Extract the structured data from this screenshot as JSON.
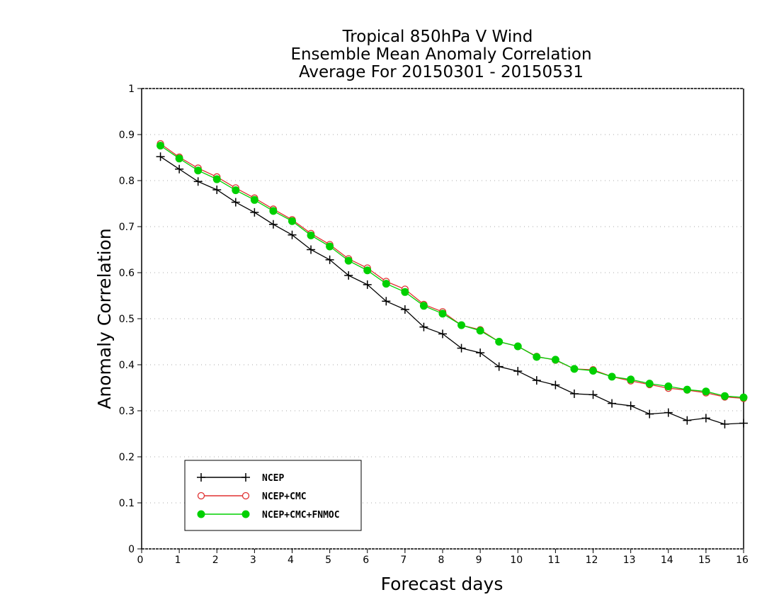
{
  "chart_data": {
    "type": "line",
    "title": "Tropical 850hPa V Wind",
    "subtitle_line1": "Ensemble Mean Anomaly Correlation",
    "subtitle_line2": "Average For 20150301 - 20150531",
    "xlabel": "Forecast days",
    "ylabel": "Anomaly Correlation",
    "xlim": [
      0,
      16
    ],
    "ylim": [
      0,
      1
    ],
    "xticks": [
      "0",
      "1",
      "2",
      "3",
      "4",
      "5",
      "6",
      "7",
      "8",
      "9",
      "10",
      "11",
      "12",
      "13",
      "14",
      "15",
      "16"
    ],
    "yticks": [
      "0",
      "0.1",
      "0.2",
      "0.3",
      "0.4",
      "0.5",
      "0.6",
      "0.7",
      "0.8",
      "0.9",
      "1"
    ],
    "grid": true,
    "legend_position": "bottom-left",
    "x": [
      0.5,
      1,
      1.5,
      2,
      2.5,
      3,
      3.5,
      4,
      4.5,
      5,
      5.5,
      6,
      6.5,
      7,
      7.5,
      8,
      8.5,
      9,
      9.5,
      10,
      10.5,
      11,
      11.5,
      12,
      12.5,
      13,
      13.5,
      14,
      14.5,
      15,
      15.5,
      16
    ],
    "series": [
      {
        "name": "NCEP",
        "color": "#000000",
        "marker": "plus",
        "values": [
          0.852,
          0.825,
          0.798,
          0.78,
          0.753,
          0.731,
          0.705,
          0.682,
          0.65,
          0.628,
          0.594,
          0.574,
          0.538,
          0.52,
          0.482,
          0.467,
          0.436,
          0.426,
          0.396,
          0.386,
          0.366,
          0.356,
          0.337,
          0.335,
          0.316,
          0.311,
          0.293,
          0.296,
          0.279,
          0.284,
          0.271,
          0.273
        ]
      },
      {
        "name": "NCEP+CMC",
        "color": "#e03030",
        "marker": "open-circle",
        "values": [
          0.88,
          0.851,
          0.827,
          0.808,
          0.784,
          0.762,
          0.738,
          0.715,
          0.685,
          0.661,
          0.63,
          0.61,
          0.581,
          0.564,
          0.531,
          0.515,
          0.486,
          0.476,
          0.45,
          0.44,
          0.418,
          0.41,
          0.391,
          0.389,
          0.374,
          0.365,
          0.357,
          0.349,
          0.345,
          0.339,
          0.33,
          0.327
        ]
      },
      {
        "name": "NCEP+CMC+FNMOC",
        "color": "#00d000",
        "marker": "filled-circle",
        "values": [
          0.876,
          0.848,
          0.822,
          0.803,
          0.779,
          0.758,
          0.734,
          0.712,
          0.681,
          0.657,
          0.626,
          0.605,
          0.576,
          0.558,
          0.528,
          0.511,
          0.486,
          0.474,
          0.45,
          0.44,
          0.417,
          0.411,
          0.391,
          0.387,
          0.374,
          0.368,
          0.359,
          0.353,
          0.346,
          0.342,
          0.332,
          0.329
        ]
      }
    ]
  }
}
